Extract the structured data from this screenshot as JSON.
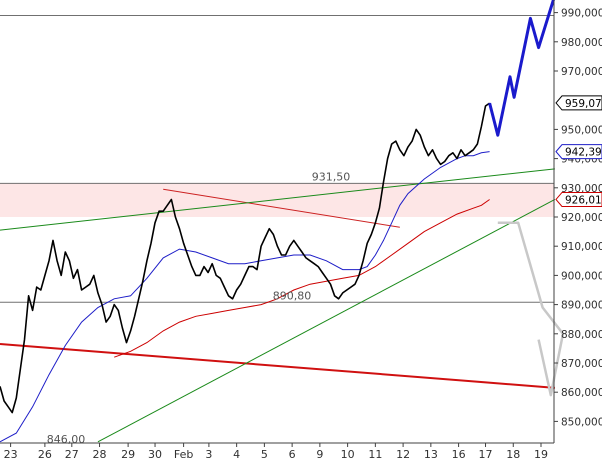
{
  "chart_data": {
    "type": "line",
    "title": "",
    "xlabel": "",
    "ylabel": "",
    "ylim": [
      843,
      995
    ],
    "x_labels": [
      {
        "label": "23",
        "i": 1.3
      },
      {
        "label": "26",
        "i": 5.5
      },
      {
        "label": "27",
        "i": 8.8
      },
      {
        "label": "28",
        "i": 12.2
      },
      {
        "label": "29",
        "i": 15.7
      },
      {
        "label": "30",
        "i": 19.0
      },
      {
        "label": "Feb",
        "i": 22.5
      },
      {
        "label": "3",
        "i": 25.6
      },
      {
        "label": "4",
        "i": 29.0
      },
      {
        "label": "5",
        "i": 32.4
      },
      {
        "label": "6",
        "i": 35.8
      },
      {
        "label": "9",
        "i": 39.2
      },
      {
        "label": "10",
        "i": 42.6
      },
      {
        "label": "11",
        "i": 46.0
      },
      {
        "label": "12",
        "i": 49.4
      },
      {
        "label": "13",
        "i": 52.8
      },
      {
        "label": "16",
        "i": 56.2
      },
      {
        "label": "17",
        "i": 59.5
      },
      {
        "label": "18",
        "i": 62.9
      },
      {
        "label": "19",
        "i": 66.3
      }
    ],
    "y_ticks": [
      {
        "label": "990,000",
        "v": 990
      },
      {
        "label": "980,000",
        "v": 980
      },
      {
        "label": "970,000",
        "v": 970
      },
      {
        "label": "950,000",
        "v": 950
      },
      {
        "label": "940,000",
        "v": 940
      },
      {
        "label": "930,000",
        "v": 930
      },
      {
        "label": "920,000",
        "v": 920
      },
      {
        "label": "910,000",
        "v": 910
      },
      {
        "label": "900,000",
        "v": 900
      },
      {
        "label": "890,000",
        "v": 890
      },
      {
        "label": "880,000",
        "v": 880
      },
      {
        "label": "870,000",
        "v": 870
      },
      {
        "label": "860,000",
        "v": 860
      },
      {
        "label": "850,000",
        "v": 850
      }
    ],
    "price_series": {
      "name": "",
      "color": "#000000",
      "points": [
        [
          0,
          862
        ],
        [
          0.5,
          857
        ],
        [
          1,
          855
        ],
        [
          1.5,
          853
        ],
        [
          2,
          858
        ],
        [
          2.5,
          868
        ],
        [
          3,
          878
        ],
        [
          3.5,
          893
        ],
        [
          4,
          888
        ],
        [
          4.5,
          896
        ],
        [
          5,
          895
        ],
        [
          5.5,
          900
        ],
        [
          6,
          905
        ],
        [
          6.5,
          912
        ],
        [
          7,
          905
        ],
        [
          7.5,
          900
        ],
        [
          8,
          908
        ],
        [
          8.5,
          905
        ],
        [
          9,
          899
        ],
        [
          9.5,
          902
        ],
        [
          10,
          895
        ],
        [
          10.5,
          896
        ],
        [
          11,
          897
        ],
        [
          11.5,
          900
        ],
        [
          12,
          894
        ],
        [
          12.5,
          890
        ],
        [
          13,
          884
        ],
        [
          13.5,
          886
        ],
        [
          14,
          890
        ],
        [
          14.5,
          888
        ],
        [
          15,
          882
        ],
        [
          15.5,
          877
        ],
        [
          16,
          881
        ],
        [
          16.5,
          886
        ],
        [
          17,
          892
        ],
        [
          17.5,
          898
        ],
        [
          18,
          905
        ],
        [
          18.5,
          911
        ],
        [
          19,
          918
        ],
        [
          19.5,
          922
        ],
        [
          20,
          922
        ],
        [
          20.5,
          924
        ],
        [
          21,
          926
        ],
        [
          21.5,
          920
        ],
        [
          22,
          916
        ],
        [
          22.5,
          911
        ],
        [
          23,
          907
        ],
        [
          23.5,
          903
        ],
        [
          24,
          900
        ],
        [
          24.5,
          900
        ],
        [
          25,
          903
        ],
        [
          25.5,
          901
        ],
        [
          26,
          904
        ],
        [
          26.5,
          900
        ],
        [
          27,
          899
        ],
        [
          27.5,
          896
        ],
        [
          28,
          893
        ],
        [
          28.5,
          892
        ],
        [
          29,
          895
        ],
        [
          29.5,
          897
        ],
        [
          30,
          900
        ],
        [
          30.5,
          903
        ],
        [
          31,
          903
        ],
        [
          31.5,
          902
        ],
        [
          32,
          910
        ],
        [
          32.5,
          913
        ],
        [
          33,
          916
        ],
        [
          33.5,
          914
        ],
        [
          34,
          910
        ],
        [
          34.5,
          907
        ],
        [
          35,
          907
        ],
        [
          35.5,
          910
        ],
        [
          36,
          912
        ],
        [
          36.5,
          910
        ],
        [
          37,
          908
        ],
        [
          37.5,
          906
        ],
        [
          38,
          905
        ],
        [
          38.5,
          904
        ],
        [
          39,
          903
        ],
        [
          39.5,
          901
        ],
        [
          40,
          899
        ],
        [
          40.5,
          897
        ],
        [
          41,
          893
        ],
        [
          41.5,
          892
        ],
        [
          42,
          894
        ],
        [
          42.5,
          895
        ],
        [
          43,
          896
        ],
        [
          43.5,
          897
        ],
        [
          44,
          900
        ],
        [
          44.5,
          905
        ],
        [
          45,
          911
        ],
        [
          45.5,
          914
        ],
        [
          46,
          918
        ],
        [
          46.5,
          923
        ],
        [
          47,
          932
        ],
        [
          47.5,
          940
        ],
        [
          48,
          945
        ],
        [
          48.5,
          946
        ],
        [
          49,
          943
        ],
        [
          49.5,
          941
        ],
        [
          50,
          944
        ],
        [
          50.5,
          946
        ],
        [
          51,
          950
        ],
        [
          51.5,
          948
        ],
        [
          52,
          944
        ],
        [
          52.5,
          941
        ],
        [
          53,
          943
        ],
        [
          53.5,
          940
        ],
        [
          54,
          938
        ],
        [
          54.5,
          939
        ],
        [
          55,
          941
        ],
        [
          55.5,
          942
        ],
        [
          56,
          940
        ],
        [
          56.5,
          943
        ],
        [
          57,
          941
        ],
        [
          57.5,
          942
        ],
        [
          58,
          943
        ],
        [
          58.5,
          945
        ],
        [
          59,
          951
        ],
        [
          59.5,
          958
        ],
        [
          60,
          959
        ]
      ]
    },
    "ma_short": {
      "name": "",
      "color": "#1e1ec8",
      "points": [
        [
          0,
          843
        ],
        [
          2,
          846
        ],
        [
          4,
          855
        ],
        [
          6,
          866
        ],
        [
          8,
          876
        ],
        [
          10,
          884
        ],
        [
          12,
          889
        ],
        [
          14,
          892
        ],
        [
          16,
          893
        ],
        [
          18,
          899
        ],
        [
          20,
          906
        ],
        [
          22,
          909
        ],
        [
          24,
          908
        ],
        [
          26,
          906
        ],
        [
          28,
          904
        ],
        [
          30,
          904
        ],
        [
          32,
          905
        ],
        [
          34,
          906
        ],
        [
          36,
          907
        ],
        [
          38,
          907
        ],
        [
          40,
          905
        ],
        [
          42,
          902
        ],
        [
          44,
          902
        ],
        [
          45,
          903
        ],
        [
          46,
          907
        ],
        [
          47,
          912
        ],
        [
          48,
          918
        ],
        [
          49,
          924
        ],
        [
          50,
          928
        ],
        [
          52,
          933
        ],
        [
          54,
          937
        ],
        [
          56,
          940
        ],
        [
          57,
          941
        ],
        [
          58,
          941
        ],
        [
          59,
          942
        ],
        [
          60,
          942.4
        ]
      ]
    },
    "ma_long": {
      "name": "",
      "color": "#cc0000",
      "points": [
        [
          14,
          872
        ],
        [
          16,
          874
        ],
        [
          18,
          877
        ],
        [
          20,
          881
        ],
        [
          22,
          884
        ],
        [
          24,
          886
        ],
        [
          26,
          887
        ],
        [
          28,
          888
        ],
        [
          30,
          889
        ],
        [
          32,
          890
        ],
        [
          34,
          892
        ],
        [
          36,
          895
        ],
        [
          38,
          897
        ],
        [
          40,
          898
        ],
        [
          42,
          899
        ],
        [
          44,
          900
        ],
        [
          46,
          903
        ],
        [
          48,
          907
        ],
        [
          50,
          911
        ],
        [
          52,
          915
        ],
        [
          54,
          918
        ],
        [
          56,
          921
        ],
        [
          58,
          923
        ],
        [
          59,
          924
        ],
        [
          60,
          926
        ]
      ]
    },
    "price_label": {
      "label": "959,07",
      "v": 959.07
    },
    "ma_short_label": {
      "label": "942,39",
      "v": 942.39
    },
    "ma_long_label": {
      "label": "926,01",
      "v": 926.01
    },
    "resistance_band": {
      "from": 920,
      "to": 931.5,
      "color": "#fde6e6"
    },
    "horizontal_levels": [
      {
        "name": "level-931-50",
        "value": 931.5,
        "label": "931,50"
      },
      {
        "name": "level-890-80",
        "value": 890.8,
        "label": "890,80"
      },
      {
        "name": "level-989",
        "value": 989,
        "label": ""
      }
    ],
    "low_label": {
      "label": "846,00",
      "v": 846.0
    },
    "trend_lines": [
      {
        "name": "red-downtrend-line",
        "color": "#d01010",
        "width": 2,
        "from": [
          0,
          876.5
        ],
        "to": [
          68,
          861.5
        ]
      },
      {
        "name": "red-triangle-upper-line",
        "color": "#cc2222",
        "width": 1,
        "from": [
          20,
          929.5
        ],
        "to": [
          49,
          916.5
        ]
      },
      {
        "name": "green-upper-line",
        "color": "#1a8a1a",
        "width": 1,
        "from": [
          0,
          915.5
        ],
        "to": [
          68,
          936.5
        ]
      },
      {
        "name": "green-lower-line",
        "color": "#1a8a1a",
        "width": 1,
        "from": [
          12,
          843
        ],
        "to": [
          68,
          926
        ]
      }
    ],
    "bull_projection": {
      "color": "#1a1acc",
      "points": [
        [
          60,
          959
        ],
        [
          61,
          948
        ],
        [
          62.5,
          968
        ],
        [
          63,
          961
        ],
        [
          65,
          988
        ],
        [
          66,
          978
        ],
        [
          68,
          996
        ]
      ]
    },
    "bear_projection": {
      "color": "#c8c8c8",
      "points": [
        [
          61,
          918
        ],
        [
          63.5,
          918
        ],
        [
          66.5,
          889
        ],
        [
          69,
          880
        ],
        [
          67.5,
          859
        ],
        [
          66,
          878
        ]
      ]
    }
  }
}
